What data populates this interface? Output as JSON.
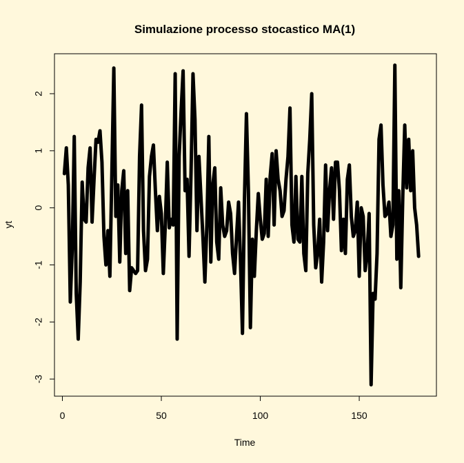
{
  "chart_data": {
    "type": "line",
    "title": "Simulazione processo stocastico MA(1)",
    "xlabel": "Time",
    "ylabel": "yt",
    "xlim": [
      -4,
      189
    ],
    "ylim": [
      -3.3,
      2.7
    ],
    "xticks": [
      0,
      50,
      100,
      150
    ],
    "yticks": [
      -3,
      -2,
      -1,
      0,
      1,
      2
    ],
    "xtick_labels": [
      "0",
      "50",
      "100",
      "150"
    ],
    "ytick_labels": [
      "-3",
      "-2",
      "-1",
      "0",
      "1",
      "2"
    ],
    "grid": false,
    "line_color": "#000000",
    "series": [
      {
        "x": [
          1,
          2,
          3,
          4,
          5,
          6,
          7,
          8,
          9,
          10,
          11,
          12,
          13,
          14,
          15,
          16,
          17,
          18,
          19,
          20,
          21,
          22,
          23,
          24,
          25,
          26,
          27,
          28,
          29,
          30,
          31,
          32,
          33,
          34,
          35,
          36,
          37,
          38,
          39,
          40,
          41,
          42,
          43,
          44,
          45,
          46,
          47,
          48,
          49,
          50,
          51,
          52,
          53,
          54,
          55,
          56,
          57,
          58,
          59,
          60,
          61,
          62,
          63,
          64,
          65,
          66,
          67,
          68,
          69,
          70,
          71,
          72,
          73,
          74,
          75,
          76,
          77,
          78,
          79,
          80,
          81,
          82,
          83,
          84,
          85,
          86,
          87,
          88,
          89,
          90,
          91,
          92,
          93,
          94,
          95,
          96,
          97,
          98,
          99,
          100,
          101,
          102,
          103,
          104,
          105,
          106,
          107,
          108,
          109,
          110,
          111,
          112,
          113,
          114,
          115,
          116,
          117,
          118,
          119,
          120,
          121,
          122,
          123,
          124,
          125,
          126,
          127,
          128,
          129,
          130,
          131,
          132,
          133,
          134,
          135,
          136,
          137,
          138,
          139,
          140,
          141,
          142,
          143,
          144,
          145,
          146,
          147,
          148,
          149,
          150,
          151,
          152,
          153,
          154,
          155,
          156,
          157,
          158,
          159,
          160,
          161,
          162,
          163,
          164,
          165,
          166,
          167,
          168,
          169,
          170,
          171,
          172,
          173,
          174,
          175,
          176,
          177,
          178,
          179,
          180
        ],
        "y": [
          0.6,
          1.05,
          0.4,
          -1.65,
          -0.7,
          1.25,
          -1.5,
          -2.3,
          -1.3,
          0.45,
          -0.2,
          -0.25,
          0.7,
          1.05,
          -0.25,
          0.5,
          1.2,
          1.15,
          1.35,
          0.8,
          -0.5,
          -1.0,
          -0.4,
          -1.2,
          0.6,
          2.45,
          -0.15,
          0.4,
          -0.95,
          0.3,
          0.65,
          -0.8,
          0.3,
          -1.45,
          -1.05,
          -1.1,
          -1.15,
          -1.1,
          0.9,
          1.8,
          -0.4,
          -1.1,
          -0.9,
          0.55,
          0.9,
          1.1,
          0.3,
          -0.4,
          0.2,
          -0.1,
          -1.15,
          -0.3,
          0.8,
          -0.35,
          -0.2,
          -0.3,
          2.35,
          -2.3,
          0.9,
          1.7,
          2.4,
          0.3,
          0.5,
          -0.85,
          0.6,
          2.35,
          1.55,
          -0.4,
          0.9,
          0.2,
          -0.5,
          -1.3,
          -0.3,
          1.25,
          -0.95,
          0.4,
          0.7,
          -0.6,
          -0.9,
          0.35,
          -0.3,
          -0.5,
          -0.4,
          0.1,
          -0.1,
          -0.8,
          -1.15,
          -0.5,
          0.1,
          -0.95,
          -2.2,
          0.15,
          1.65,
          0.3,
          -2.1,
          -0.55,
          -1.2,
          -0.4,
          0.25,
          -0.2,
          -0.55,
          -0.45,
          0.5,
          -0.5,
          0.55,
          0.95,
          -0.3,
          1.0,
          0.5,
          0.3,
          -0.15,
          -0.05,
          0.5,
          0.9,
          1.75,
          -0.3,
          -0.6,
          0.55,
          -0.55,
          -0.6,
          0.55,
          -0.8,
          -1.1,
          0.6,
          1.2,
          2.0,
          -0.3,
          -1.05,
          -0.8,
          -0.2,
          -1.3,
          -0.6,
          0.75,
          -0.4,
          0.3,
          0.7,
          -0.2,
          0.8,
          0.8,
          0.3,
          -0.75,
          -0.2,
          -0.8,
          0.5,
          0.75,
          -0.15,
          -0.5,
          -0.4,
          0.1,
          -1.2,
          0.0,
          -0.15,
          -1.1,
          -0.8,
          -0.1,
          -3.1,
          -1.5,
          -1.6,
          -0.8,
          1.2,
          1.45,
          0.4,
          -0.15,
          -0.1,
          0.1,
          -0.5,
          -0.3,
          2.5,
          -0.9,
          0.3,
          -1.4,
          0.2,
          1.45,
          0.35,
          1.2,
          0.3,
          1.0,
          0.0,
          -0.3,
          -0.85
        ]
      }
    ]
  }
}
